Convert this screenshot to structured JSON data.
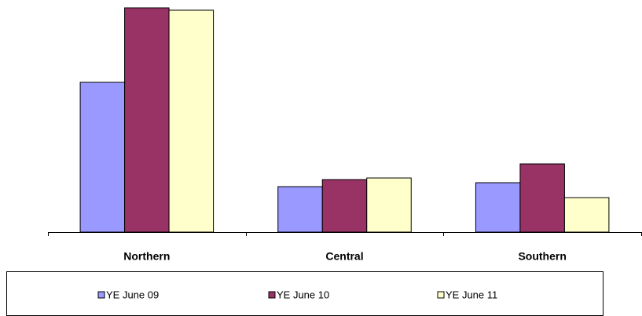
{
  "chart_data": {
    "type": "bar",
    "categories": [
      "Northern",
      "Central",
      "Southern"
    ],
    "series": [
      {
        "name": "YE June 09",
        "color": "#9999ff",
        "values": [
          191,
          58,
          63
        ]
      },
      {
        "name": "YE June 10",
        "color": "#993366",
        "values": [
          286,
          67,
          87
        ]
      },
      {
        "name": "YE June 11",
        "color": "#ffffcc",
        "values": [
          283,
          69,
          44
        ]
      }
    ],
    "ylim": [
      0,
      290
    ],
    "legend": "bottom"
  }
}
